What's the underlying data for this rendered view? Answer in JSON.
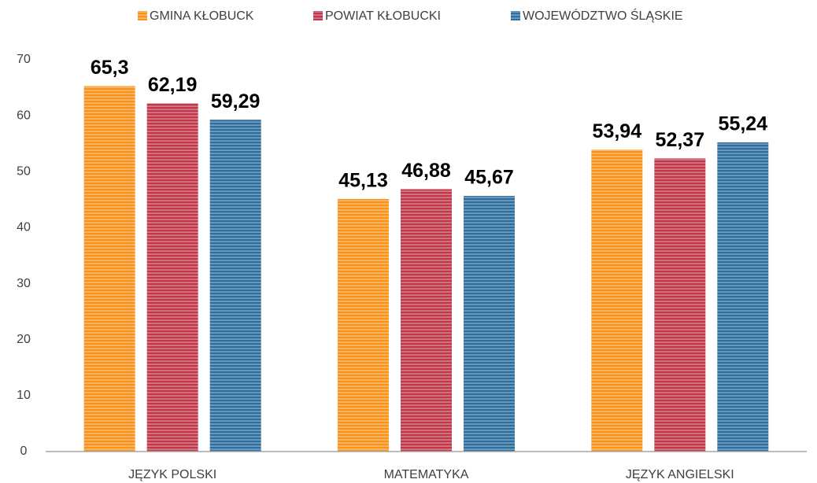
{
  "chart_data": {
    "type": "bar",
    "categories": [
      "JĘZYK POLSKI",
      "MATEMATYKA",
      "JĘZYK ANGIELSKI"
    ],
    "series": [
      {
        "name": "GMINA KŁOBUCK",
        "color": "#f7941d",
        "values": [
          65.3,
          45.13,
          53.94
        ],
        "value_labels": [
          "65,3",
          "45,13",
          "53,94"
        ]
      },
      {
        "name": "POWIAT KŁOBUCKI",
        "color": "#c0394b",
        "values": [
          62.19,
          46.88,
          52.37
        ],
        "value_labels": [
          "62,19",
          "46,88",
          "52,37"
        ]
      },
      {
        "name": "WOJEWÓDZTWO ŚLĄSKIE",
        "color": "#2f6f9f",
        "values": [
          59.29,
          45.67,
          55.24
        ],
        "value_labels": [
          "59,29",
          "45,67",
          "55,24"
        ]
      }
    ],
    "ylim": [
      0,
      70
    ],
    "yticks": [
      0,
      10,
      20,
      30,
      40,
      50,
      60,
      70
    ],
    "grid": false,
    "legend": "top"
  }
}
